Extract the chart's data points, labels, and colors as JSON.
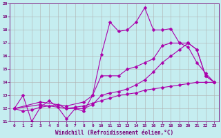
{
  "xlabel": "Windchill (Refroidissement éolien,°C)",
  "xlim": [
    -0.5,
    23.5
  ],
  "ylim": [
    11,
    20
  ],
  "yticks": [
    11,
    12,
    13,
    14,
    15,
    16,
    17,
    18,
    19,
    20
  ],
  "xticks": [
    0,
    1,
    2,
    3,
    4,
    5,
    6,
    7,
    8,
    9,
    10,
    11,
    12,
    13,
    14,
    15,
    16,
    17,
    18,
    19,
    20,
    21,
    22,
    23
  ],
  "bg_color": "#c5edf0",
  "grid_color": "#b0b0b0",
  "line_color": "#aa00aa",
  "line1_x": [
    0,
    1,
    2,
    3,
    4,
    5,
    6,
    7,
    8,
    9,
    10,
    11,
    12,
    13,
    14,
    15,
    16,
    17,
    18,
    19,
    20,
    21,
    22,
    23
  ],
  "line1_y": [
    12.0,
    13.0,
    11.0,
    12.1,
    12.6,
    12.1,
    11.2,
    12.0,
    11.8,
    13.0,
    16.1,
    18.6,
    17.9,
    18.0,
    18.6,
    19.7,
    18.0,
    18.0,
    18.1,
    17.0,
    16.7,
    15.5,
    14.7,
    14.0
  ],
  "line2_x": [
    0,
    3,
    6,
    8,
    9,
    10,
    11,
    12,
    13,
    14,
    15,
    16,
    17,
    18,
    19,
    20,
    21,
    22,
    23
  ],
  "line2_y": [
    12.0,
    12.5,
    12.2,
    12.5,
    13.0,
    14.5,
    14.5,
    14.5,
    15.0,
    15.2,
    15.5,
    15.8,
    16.8,
    17.0,
    17.0,
    17.0,
    16.5,
    14.5,
    14.0
  ],
  "line3_x": [
    0,
    3,
    6,
    8,
    9,
    10,
    11,
    12,
    13,
    14,
    15,
    16,
    17,
    18,
    19,
    20,
    21,
    22,
    23
  ],
  "line3_y": [
    12.0,
    12.3,
    12.0,
    12.0,
    12.3,
    13.0,
    13.2,
    13.3,
    13.5,
    13.8,
    14.2,
    14.8,
    15.5,
    16.0,
    16.5,
    17.0,
    16.5,
    14.5,
    14.0
  ],
  "line4_x": [
    0,
    1,
    2,
    3,
    4,
    5,
    6,
    7,
    8,
    9,
    10,
    11,
    12,
    13,
    14,
    15,
    16,
    17,
    18,
    19,
    20,
    21,
    22,
    23
  ],
  "line4_y": [
    12.0,
    11.8,
    11.9,
    12.1,
    12.2,
    12.3,
    12.0,
    12.1,
    12.2,
    12.4,
    12.6,
    12.8,
    13.0,
    13.1,
    13.2,
    13.4,
    13.5,
    13.6,
    13.7,
    13.8,
    13.9,
    14.0,
    14.0,
    14.0
  ]
}
